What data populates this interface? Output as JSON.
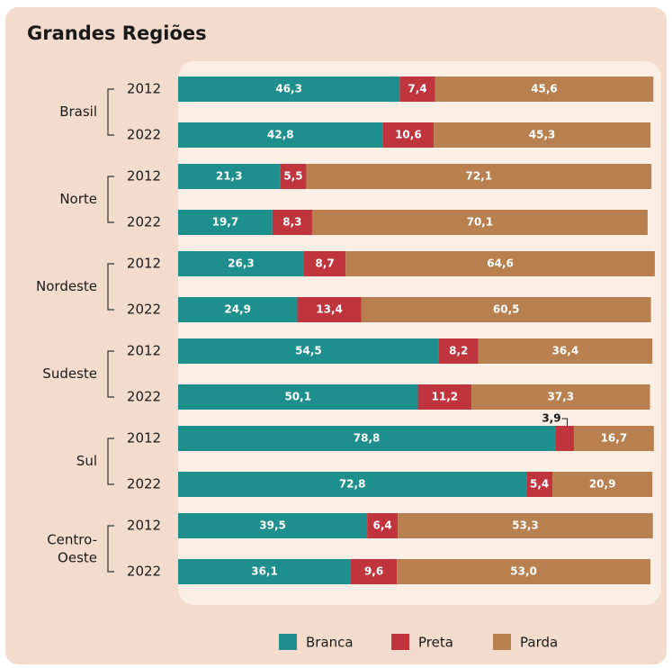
{
  "chart_data": {
    "type": "stacked-barh",
    "title": "Grandes Regiões",
    "groups": [
      "Brasil",
      "Norte",
      "Nordeste",
      "Sudeste",
      "Sul",
      "Centro-Oeste"
    ],
    "categories": [
      "2012",
      "2022",
      "2012",
      "2022",
      "2012",
      "2022",
      "2012",
      "2022",
      "2012",
      "2022",
      "2012",
      "2022"
    ],
    "xlim": [
      0,
      100
    ],
    "legend": "bottom",
    "series": [
      {
        "name": "Branca",
        "color": "#1e8f8c",
        "values": [
          46.3,
          42.8,
          21.3,
          19.7,
          26.3,
          24.9,
          54.5,
          50.1,
          78.8,
          72.8,
          39.5,
          36.1
        ],
        "value_labels": [
          "46,3",
          "42,8",
          "21,3",
          "19,7",
          "26,3",
          "24,9",
          "54,5",
          "50,1",
          "78,8",
          "72,8",
          "39,5",
          "36,1"
        ]
      },
      {
        "name": "Preta",
        "color": "#bf343d",
        "values": [
          7.4,
          10.6,
          5.5,
          8.3,
          8.7,
          13.4,
          8.2,
          11.2,
          3.9,
          5.4,
          6.4,
          9.6
        ],
        "value_labels": [
          "7,4",
          "10,6",
          "5,5",
          "8,3",
          "8,7",
          "13,4",
          "8,2",
          "11,2",
          "3,9",
          "5,4",
          "6,4",
          "9,6"
        ]
      },
      {
        "name": "Parda",
        "color": "#b8804f",
        "values": [
          45.6,
          45.3,
          72.1,
          70.1,
          64.6,
          60.5,
          36.4,
          37.3,
          16.7,
          20.9,
          53.3,
          53.0
        ],
        "value_labels": [
          "45,6",
          "45,3",
          "72,1",
          "70,1",
          "64,6",
          "60,5",
          "36,4",
          "37,3",
          "16,7",
          "20,9",
          "53,3",
          "53,0"
        ]
      }
    ]
  }
}
